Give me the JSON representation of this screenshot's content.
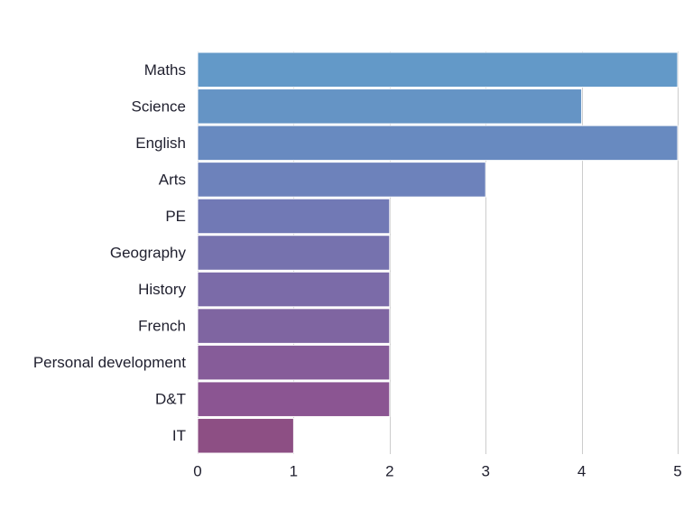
{
  "chart_data": {
    "type": "bar",
    "orientation": "horizontal",
    "categories": [
      "Maths",
      "Science",
      "English",
      "Arts",
      "PE",
      "Geography",
      "History",
      "French",
      "Personal development",
      "D&T",
      "IT"
    ],
    "values": [
      5,
      4,
      5,
      3,
      2,
      2,
      2,
      2,
      2,
      2,
      1
    ],
    "xlim": [
      0,
      5
    ],
    "x_ticks": [
      "0",
      "1",
      "2",
      "3",
      "4",
      "5"
    ],
    "grid": "vertical",
    "title": "",
    "xlabel": "",
    "ylabel": "",
    "colors": [
      "#6399c8",
      "#6594c5",
      "#688ac0",
      "#6d82bb",
      "#7179b5",
      "#7672ae",
      "#7b6ba8",
      "#7f65a1",
      "#865c99",
      "#8b5592",
      "#8d4f84"
    ],
    "bar_edge_color": "#ffffff"
  }
}
